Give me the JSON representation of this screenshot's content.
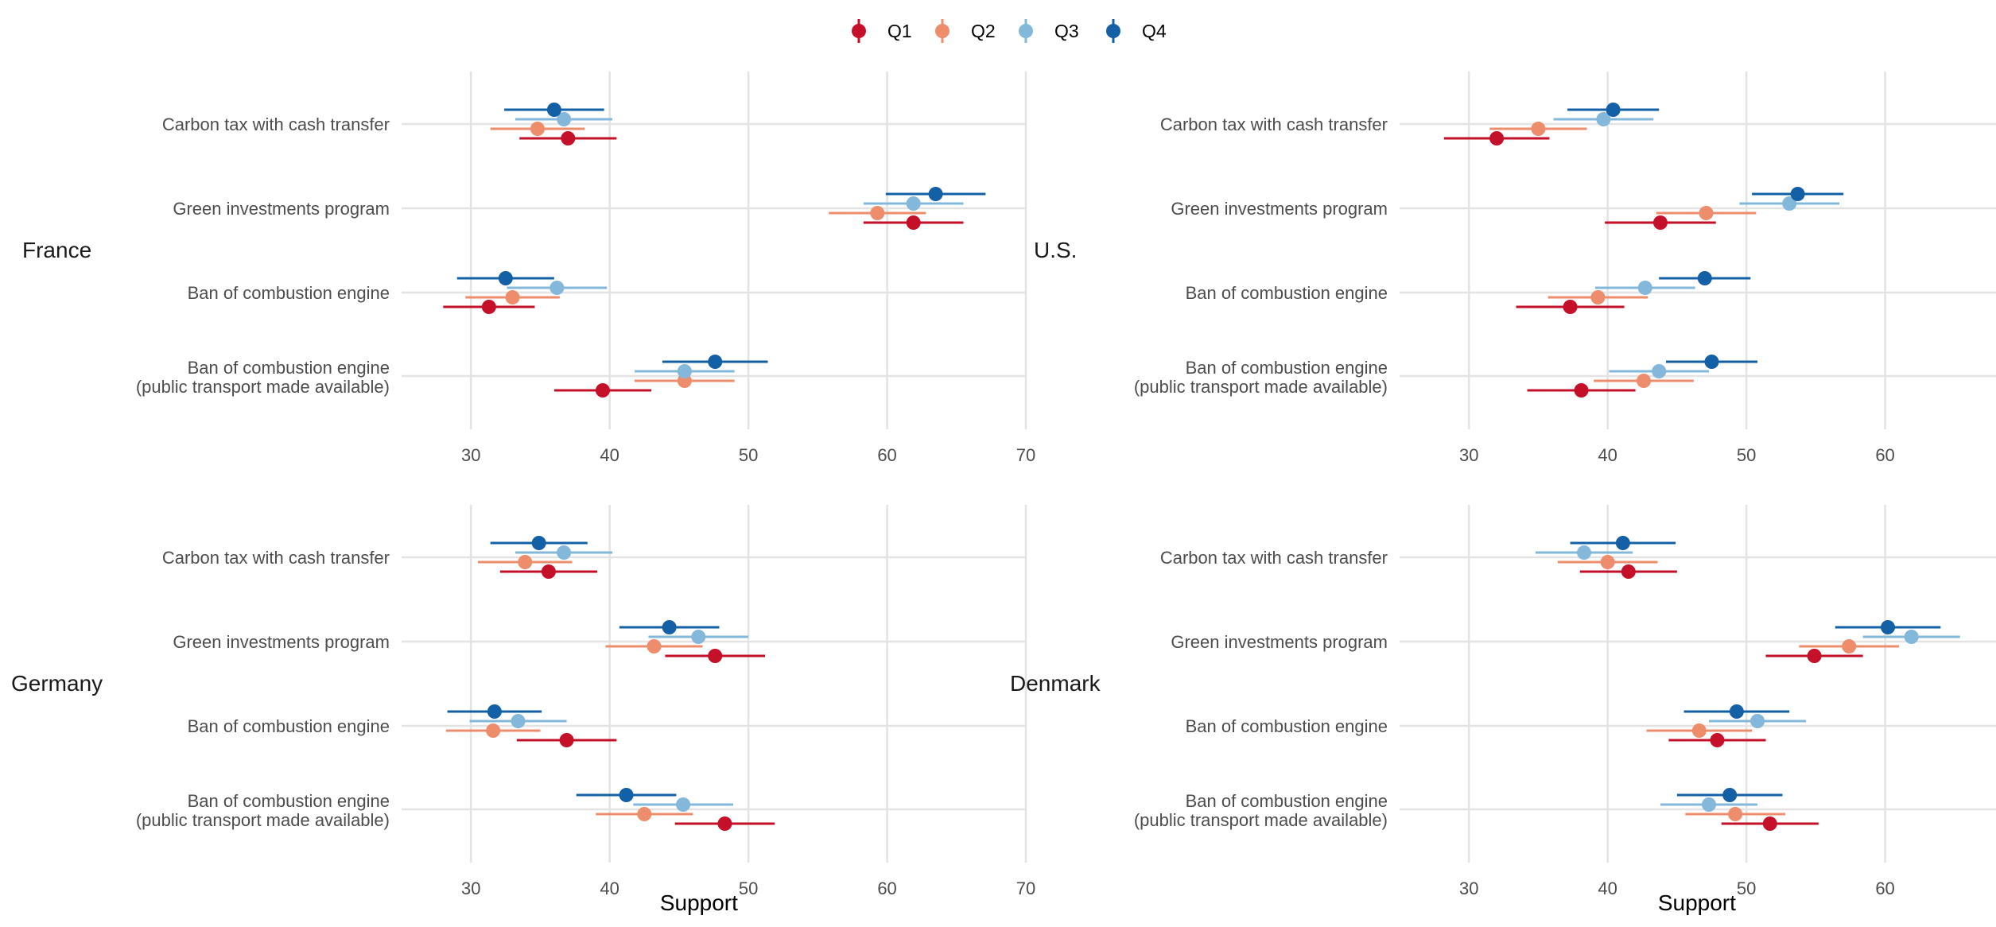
{
  "chart_data": {
    "type": "scatter",
    "subtype": "dot-and-whisker",
    "xlabel": "Support",
    "xlim": [
      25,
      70
    ],
    "xticks": [
      30,
      40,
      50,
      60,
      70
    ],
    "grid": true,
    "legend_position": "top",
    "legend": [
      "Q1",
      "Q2",
      "Q3",
      "Q4"
    ],
    "colors": {
      "Q1": "#c5102a",
      "Q2": "#ee8d6c",
      "Q3": "#83b8db",
      "Q4": "#1460a6"
    },
    "categories": [
      {
        "lines": [
          "Carbon tax with cash transfer"
        ]
      },
      {
        "lines": [
          "Green investments program"
        ]
      },
      {
        "lines": [
          "Ban of combustion engine"
        ]
      },
      {
        "lines": [
          "Ban of combustion engine",
          "(public transport made available)"
        ]
      }
    ],
    "panels": [
      {
        "name": "France",
        "series": [
          {
            "name": "Q1",
            "values": [
              37.0,
              61.9,
              31.3,
              39.5
            ],
            "lower": [
              33.5,
              58.3,
              28.0,
              36.0
            ],
            "upper": [
              40.5,
              65.5,
              34.6,
              43.0
            ]
          },
          {
            "name": "Q2",
            "values": [
              34.8,
              59.3,
              33.0,
              45.4
            ],
            "lower": [
              31.4,
              55.8,
              29.6,
              41.8
            ],
            "upper": [
              38.2,
              62.8,
              36.4,
              49.0
            ]
          },
          {
            "name": "Q3",
            "values": [
              36.7,
              61.9,
              36.2,
              45.4
            ],
            "lower": [
              33.2,
              58.3,
              32.6,
              41.8
            ],
            "upper": [
              40.2,
              65.5,
              39.8,
              49.0
            ]
          },
          {
            "name": "Q4",
            "values": [
              36.0,
              63.5,
              32.5,
              47.6
            ],
            "lower": [
              32.4,
              59.9,
              29.0,
              43.8
            ],
            "upper": [
              39.6,
              67.1,
              36.0,
              51.4
            ]
          }
        ]
      },
      {
        "name": "U.S.",
        "series": [
          {
            "name": "Q1",
            "values": [
              32.0,
              43.8,
              37.3,
              38.1
            ],
            "lower": [
              28.2,
              39.8,
              33.4,
              34.2
            ],
            "upper": [
              35.8,
              47.8,
              41.2,
              42.0
            ]
          },
          {
            "name": "Q2",
            "values": [
              35.0,
              47.1,
              39.3,
              42.6
            ],
            "lower": [
              31.5,
              43.5,
              35.7,
              39.0
            ],
            "upper": [
              38.5,
              50.7,
              42.9,
              46.2
            ]
          },
          {
            "name": "Q3",
            "values": [
              39.7,
              53.1,
              42.7,
              43.7
            ],
            "lower": [
              36.1,
              49.5,
              39.1,
              40.1
            ],
            "upper": [
              43.3,
              56.7,
              46.3,
              47.3
            ]
          },
          {
            "name": "Q4",
            "values": [
              40.4,
              53.7,
              47.0,
              47.5
            ],
            "lower": [
              37.1,
              50.4,
              43.7,
              44.2
            ],
            "upper": [
              43.7,
              57.0,
              50.3,
              50.8
            ]
          }
        ]
      },
      {
        "name": "Germany",
        "series": [
          {
            "name": "Q1",
            "values": [
              35.6,
              47.6,
              36.9,
              48.3
            ],
            "lower": [
              32.1,
              44.0,
              33.3,
              44.7
            ],
            "upper": [
              39.1,
              51.2,
              40.5,
              51.9
            ]
          },
          {
            "name": "Q2",
            "values": [
              33.9,
              43.2,
              31.6,
              42.5
            ],
            "lower": [
              30.5,
              39.7,
              28.2,
              39.0
            ],
            "upper": [
              37.3,
              46.7,
              35.0,
              46.0
            ]
          },
          {
            "name": "Q3",
            "values": [
              36.7,
              46.4,
              33.4,
              45.3
            ],
            "lower": [
              33.2,
              42.8,
              29.9,
              41.7
            ],
            "upper": [
              40.2,
              50.0,
              36.9,
              48.9
            ]
          },
          {
            "name": "Q4",
            "values": [
              34.9,
              44.3,
              31.7,
              41.2
            ],
            "lower": [
              31.4,
              40.7,
              28.3,
              37.6
            ],
            "upper": [
              38.4,
              47.9,
              35.1,
              44.8
            ]
          }
        ]
      },
      {
        "name": "Denmark",
        "series": [
          {
            "name": "Q1",
            "values": [
              41.5,
              54.9,
              47.9,
              51.7
            ],
            "lower": [
              38.0,
              51.4,
              44.4,
              48.2
            ],
            "upper": [
              45.0,
              58.4,
              51.4,
              55.2
            ]
          },
          {
            "name": "Q2",
            "values": [
              40.0,
              57.4,
              46.6,
              49.2
            ],
            "lower": [
              36.4,
              53.8,
              42.8,
              45.6
            ],
            "upper": [
              43.6,
              61.0,
              50.4,
              52.8
            ]
          },
          {
            "name": "Q3",
            "values": [
              38.3,
              61.9,
              50.8,
              47.3
            ],
            "lower": [
              34.8,
              58.4,
              47.3,
              43.8
            ],
            "upper": [
              41.8,
              65.4,
              54.3,
              50.8
            ]
          },
          {
            "name": "Q4",
            "values": [
              41.1,
              60.2,
              49.3,
              48.8
            ],
            "lower": [
              37.3,
              56.4,
              45.5,
              45.0
            ],
            "upper": [
              44.9,
              64.0,
              53.1,
              52.6
            ]
          }
        ]
      }
    ]
  }
}
